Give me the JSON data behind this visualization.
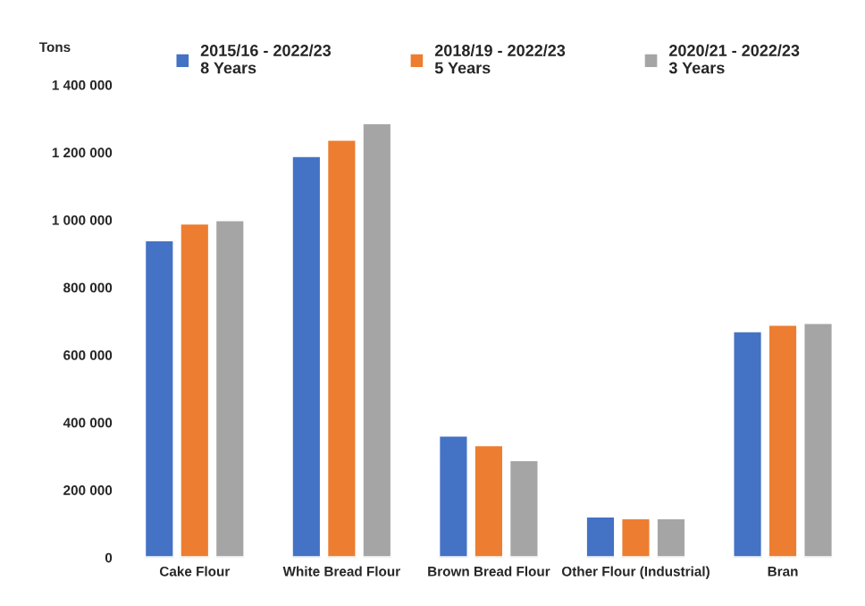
{
  "chart_data": {
    "type": "bar",
    "ylabel": "Tons",
    "categories": [
      "Cake Flour",
      "White Bread Flour",
      "Brown Bread Flour",
      "Other Flour (Industrial)",
      "Bran"
    ],
    "series": [
      {
        "name": "2015/16 - 2022/23\n8 Years",
        "color": "#4472c4",
        "values": [
          940000,
          1190000,
          362000,
          122000,
          671000
        ]
      },
      {
        "name": "2018/19 - 2022/23\n5 Years",
        "color": "#ed7d31",
        "values": [
          990000,
          1238000,
          333000,
          117000,
          690000
        ]
      },
      {
        "name": "2020/21 - 2022/23\n3 Years",
        "color": "#a5a5a5",
        "values": [
          1000000,
          1287000,
          289000,
          117000,
          695000
        ]
      }
    ],
    "ylim": [
      0,
      1400000
    ],
    "yticks": [
      0,
      {
        "value": 200000,
        "label": "200 000"
      },
      {
        "value": 400000,
        "label": "400 000"
      },
      {
        "value": 600000,
        "label": "600 000"
      },
      {
        "value": 800000,
        "label": "800 000"
      },
      {
        "value": 1000000,
        "label": "1 000 000"
      },
      {
        "value": 1200000,
        "label": "1 200 000"
      },
      {
        "value": 1400000,
        "label": "1 400 000"
      }
    ],
    "grid": false,
    "legend": "top"
  }
}
